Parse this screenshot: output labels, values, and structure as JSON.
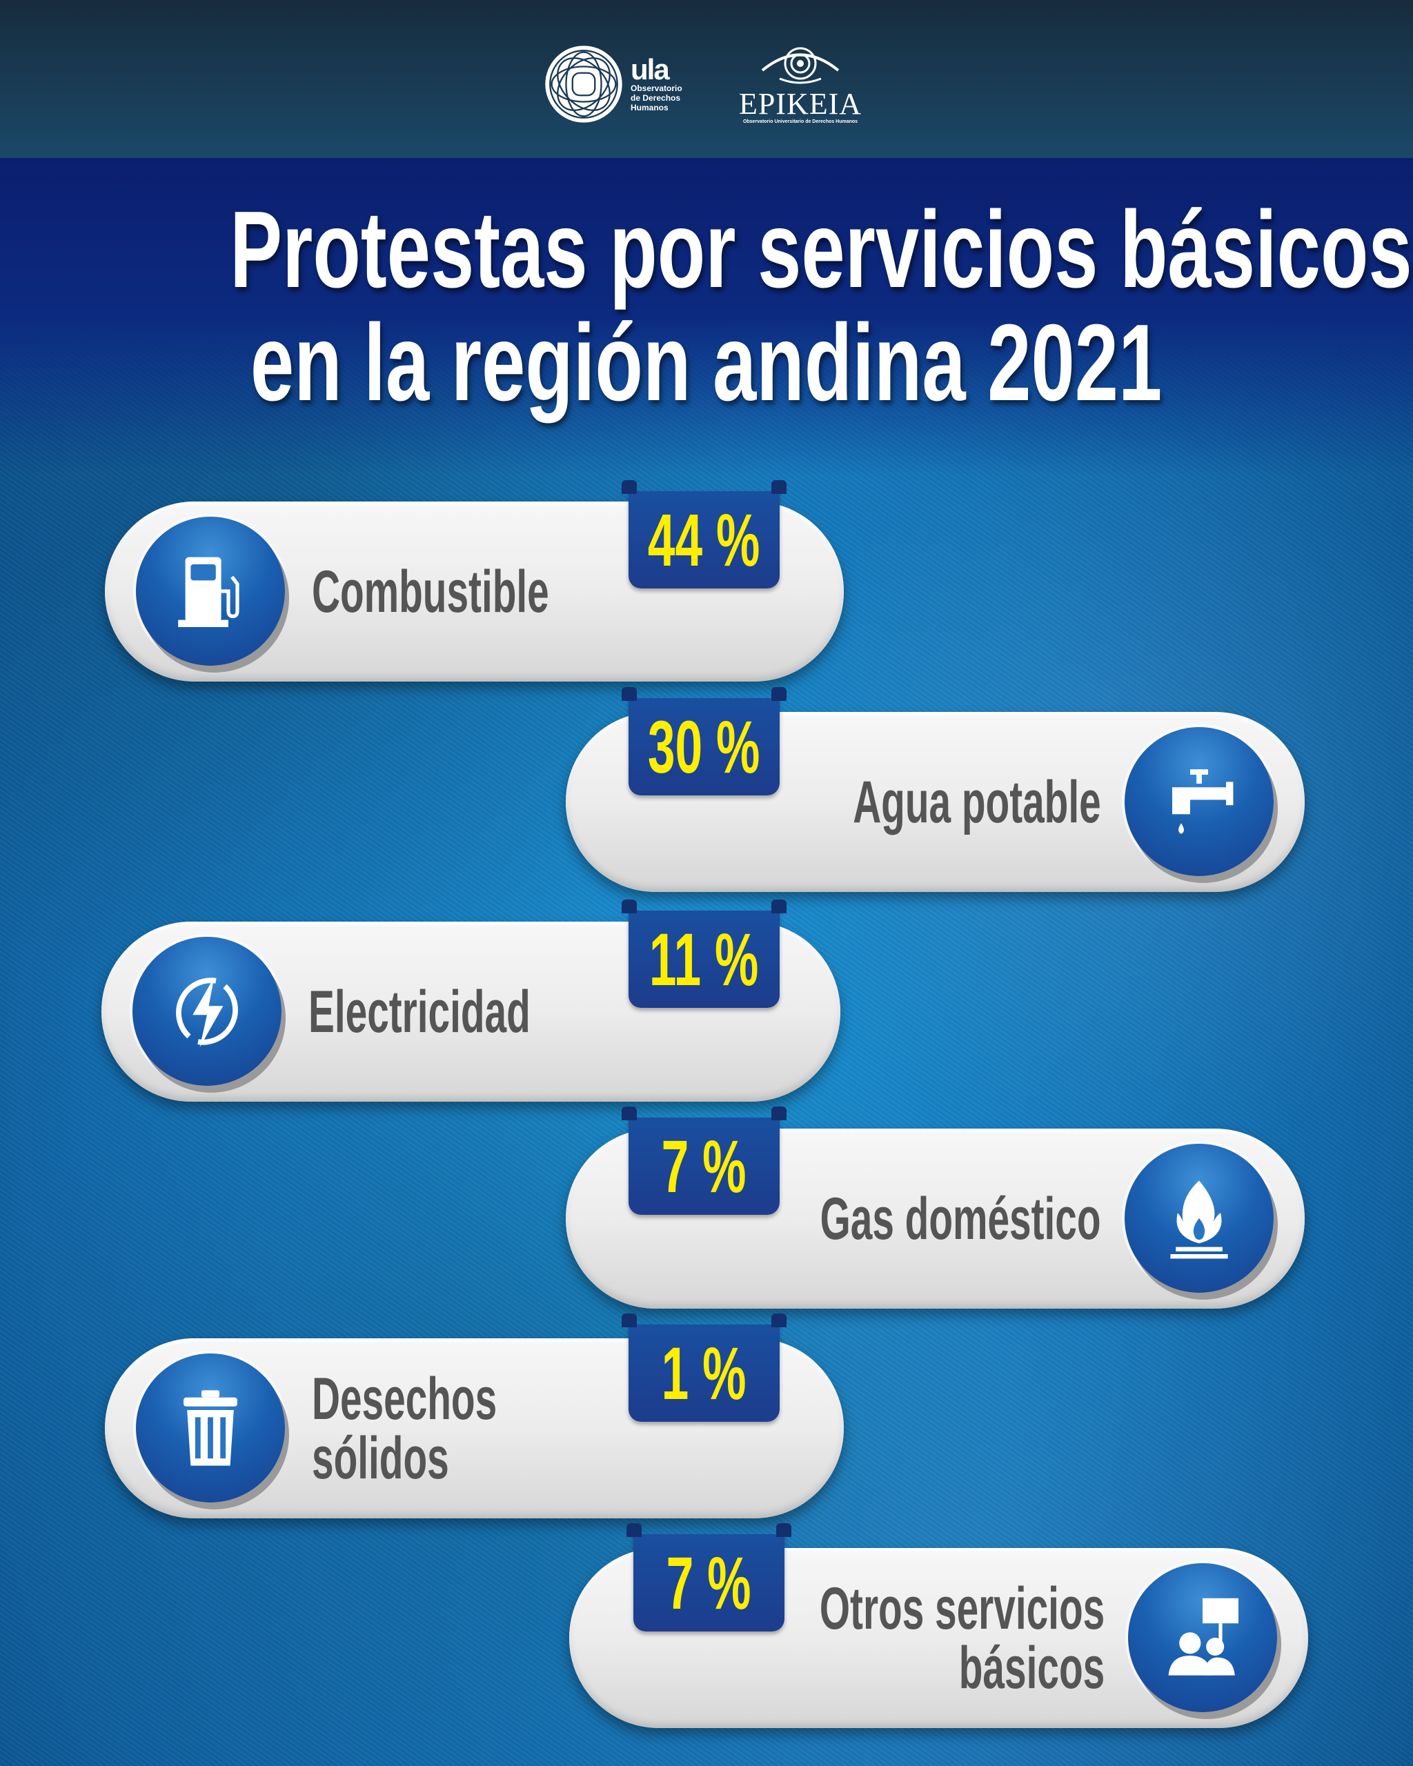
{
  "header": {
    "ula_logo": {
      "mark": "ula",
      "lines": [
        "Observatorio",
        "de Derechos",
        "Humanos"
      ]
    },
    "epikeia_logo": {
      "name": "EPIKEIA",
      "subtitle": "Observatorio Universitario de  Derechos Humanos"
    }
  },
  "title": {
    "line1": "Protestas por servicios básicos",
    "line2": "en la región andina 2021"
  },
  "colors": {
    "accent_yellow": "#ffee00",
    "badge_blue": "#1d3c8c",
    "label_gray": "#555555",
    "band_navy": "#0b1f6e"
  },
  "items": [
    {
      "label": "Combustible",
      "percent": "44 %",
      "value": 44,
      "icon": "fuel-pump-icon"
    },
    {
      "label": "Agua potable",
      "percent": "30 %",
      "value": 30,
      "icon": "water-tap-icon"
    },
    {
      "label": "Electricidad",
      "percent": "11 %",
      "value": 11,
      "icon": "lightning-icon"
    },
    {
      "label": "Gas doméstico",
      "percent": "7 %",
      "value": 7,
      "icon": "gas-flame-icon"
    },
    {
      "label": "Desechos\nsólidos",
      "percent": "1 %",
      "value": 1,
      "icon": "trash-can-icon"
    },
    {
      "label": "Otros servicios\nbásicos",
      "percent": "7 %",
      "value": 7,
      "icon": "protest-people-icon"
    }
  ]
}
